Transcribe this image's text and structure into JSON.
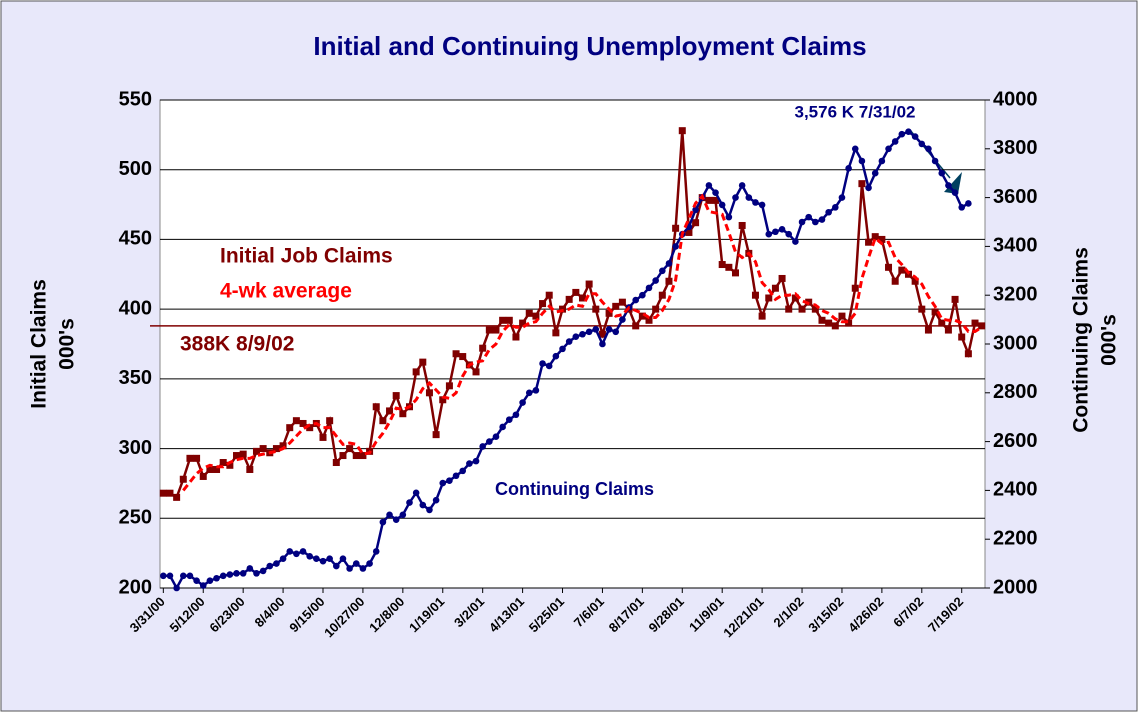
{
  "chart_data": {
    "type": "line",
    "title": "Initial and Continuing Unemployment Claims",
    "ylabel": [
      "Initial Claims",
      "000's"
    ],
    "y2label": [
      "Continuing Claims",
      "000's"
    ],
    "categories": [
      "3/31/00",
      null,
      null,
      null,
      null,
      null,
      "5/12/00",
      null,
      null,
      null,
      null,
      null,
      "6/23/00",
      null,
      null,
      null,
      null,
      null,
      "8/4/00",
      null,
      null,
      null,
      null,
      null,
      "9/15/00",
      null,
      null,
      null,
      null,
      null,
      "10/27/00",
      null,
      null,
      null,
      null,
      null,
      "12/8/00",
      null,
      null,
      null,
      null,
      null,
      "1/19/01",
      null,
      null,
      null,
      null,
      null,
      "3/2/01",
      null,
      null,
      null,
      null,
      null,
      "4/13/01",
      null,
      null,
      null,
      null,
      null,
      "5/25/01",
      null,
      null,
      null,
      null,
      null,
      "7/6/01",
      null,
      null,
      null,
      null,
      null,
      "8/17/01",
      null,
      null,
      null,
      null,
      null,
      "9/28/01",
      null,
      null,
      null,
      null,
      null,
      "11/9/01",
      null,
      null,
      null,
      null,
      null,
      "12/21/01",
      null,
      null,
      null,
      null,
      null,
      "2/1/02",
      null,
      null,
      null,
      null,
      null,
      "3/15/02",
      null,
      null,
      null,
      null,
      null,
      "4/26/02",
      null,
      null,
      null,
      null,
      null,
      "6/7/02",
      null,
      null,
      null,
      null,
      null,
      "7/19/02",
      null,
      null,
      null
    ],
    "ylim": [
      200,
      550
    ],
    "yticks": [
      200,
      250,
      300,
      350,
      400,
      450,
      500,
      550
    ],
    "y2lim": [
      2000,
      4000
    ],
    "y2ticks": [
      2000,
      2200,
      2400,
      2600,
      2800,
      3000,
      3200,
      3400,
      3600,
      3800,
      4000
    ],
    "grid": true,
    "series": [
      {
        "name": "Initial Job Claims",
        "color": "#800000",
        "marker": "square",
        "values": [
          268,
          268,
          265,
          278,
          293,
          293,
          280,
          285,
          285,
          290,
          288,
          295,
          296,
          285,
          298,
          300,
          297,
          300,
          302,
          315,
          320,
          318,
          315,
          318,
          308,
          320,
          290,
          295,
          300,
          295,
          295,
          298,
          330,
          320,
          327,
          338,
          325,
          330,
          355,
          362,
          340,
          310,
          335,
          345,
          368,
          366,
          360,
          355,
          372,
          385,
          385,
          392,
          392,
          380,
          390,
          397,
          395,
          404,
          410,
          383,
          400,
          407,
          412,
          408,
          418,
          400,
          382,
          397,
          402,
          405,
          400,
          388,
          395,
          392,
          400,
          410,
          420,
          458,
          528,
          455,
          462,
          480,
          478,
          478,
          432,
          430,
          426,
          460,
          440,
          410,
          395,
          408,
          415,
          422,
          400,
          408,
          400,
          405,
          400,
          392,
          390,
          388,
          395,
          390,
          415,
          490,
          448,
          452,
          450,
          430,
          420,
          428,
          425,
          420,
          400,
          385,
          398,
          390,
          385,
          407,
          380,
          368,
          390,
          388
        ]
      },
      {
        "name": "4-wk average",
        "color": "#ff0000",
        "dashed": true,
        "values": [
          null,
          null,
          null,
          270,
          276,
          282,
          286,
          288,
          287,
          287,
          290,
          292,
          293,
          293,
          295,
          296,
          297,
          298,
          300,
          304,
          309,
          314,
          317,
          318,
          315,
          315,
          309,
          303,
          304,
          303,
          296,
          297,
          305,
          311,
          319,
          329,
          328,
          330,
          335,
          343,
          347,
          342,
          337,
          336,
          340,
          352,
          360,
          362,
          363,
          371,
          375,
          384,
          389,
          387,
          387,
          390,
          391,
          397,
          402,
          398,
          399,
          400,
          403,
          402,
          411,
          411,
          405,
          400,
          395,
          396,
          401,
          399,
          397,
          394,
          394,
          399,
          407,
          421,
          454,
          465,
          476,
          481,
          470,
          469,
          468,
          455,
          441,
          437,
          440,
          434,
          419,
          414,
          407,
          410,
          410,
          411,
          406,
          404,
          403,
          399,
          397,
          393,
          391,
          391,
          397,
          422,
          437,
          451,
          447,
          448,
          437,
          432,
          426,
          423,
          418,
          409,
          402,
          393,
          392,
          392,
          390,
          384,
          384,
          387
        ]
      },
      {
        "name": "Continuing Claims",
        "color": "#000080",
        "marker": "circle",
        "axis": "y2",
        "values": [
          2050,
          2050,
          2000,
          2050,
          2050,
          2030,
          2010,
          2030,
          2040,
          2050,
          2055,
          2060,
          2060,
          2080,
          2060,
          2070,
          2090,
          2100,
          2120,
          2150,
          2140,
          2150,
          2130,
          2120,
          2110,
          2120,
          2090,
          2120,
          2080,
          2100,
          2080,
          2100,
          2150,
          2270,
          2300,
          2280,
          2300,
          2350,
          2390,
          2340,
          2320,
          2360,
          2430,
          2440,
          2460,
          2480,
          2510,
          2520,
          2580,
          2600,
          2620,
          2660,
          2690,
          2710,
          2760,
          2800,
          2810,
          2920,
          2910,
          2950,
          2980,
          3010,
          3030,
          3040,
          3050,
          3060,
          3000,
          3060,
          3050,
          3100,
          3150,
          3180,
          3200,
          3230,
          3260,
          3300,
          3330,
          3400,
          3450,
          3480,
          3550,
          3600,
          3650,
          3620,
          3570,
          3520,
          3600,
          3650,
          3600,
          3580,
          3570,
          3450,
          3460,
          3470,
          3450,
          3420,
          3500,
          3520,
          3500,
          3510,
          3540,
          3560,
          3600,
          3720,
          3800,
          3750,
          3640,
          3700,
          3750,
          3800,
          3830,
          3860,
          3870,
          3850,
          3820,
          3800,
          3750,
          3700,
          3650,
          3620,
          3560,
          3576,
          null,
          null
        ]
      }
    ],
    "reference_line": {
      "value": 388,
      "label": "388K 8/9/02",
      "color": "#800000"
    },
    "annotation": "3,576 K 7/31/02"
  }
}
